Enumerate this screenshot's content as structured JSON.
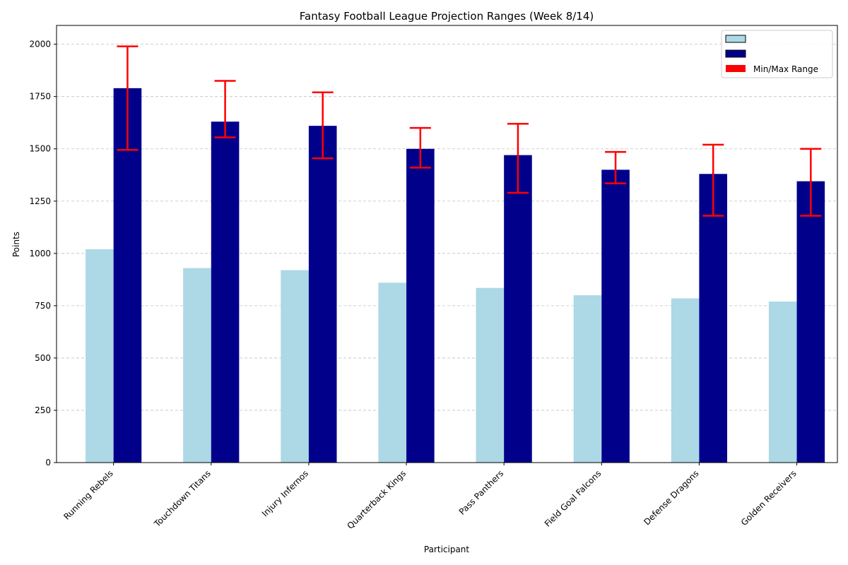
{
  "chart_data": {
    "type": "bar",
    "title": "Fantasy Football League Projection Ranges (Week 8/14)",
    "xlabel": "Participant",
    "ylabel": "Points",
    "ylim": [
      0,
      2090
    ],
    "yticks": [
      0,
      250,
      500,
      750,
      1000,
      1250,
      1500,
      1750,
      2000
    ],
    "grid": "y-dashed",
    "legend_position": "top-right",
    "categories": [
      "Running Rebels",
      "Touchdown Titans",
      "Injury Infernos",
      "Quarterback Kings",
      "Pass Panthers",
      "Field Goal Falcons",
      "Defense Dragons",
      "Golden Receivers"
    ],
    "series": [
      {
        "legend": "",
        "color": "#add8e6",
        "values": [
          1020,
          930,
          920,
          860,
          835,
          800,
          785,
          770
        ]
      },
      {
        "legend": "",
        "color": "#00008b",
        "values": [
          1790,
          1630,
          1610,
          1500,
          1470,
          1400,
          1380,
          1345
        ]
      }
    ],
    "range": {
      "name": "Min/Max Range",
      "color": "#ff0000",
      "min": [
        1495,
        1555,
        1455,
        1410,
        1290,
        1335,
        1180,
        1180
      ],
      "max": [
        1990,
        1825,
        1770,
        1600,
        1620,
        1485,
        1520,
        1500
      ]
    }
  }
}
